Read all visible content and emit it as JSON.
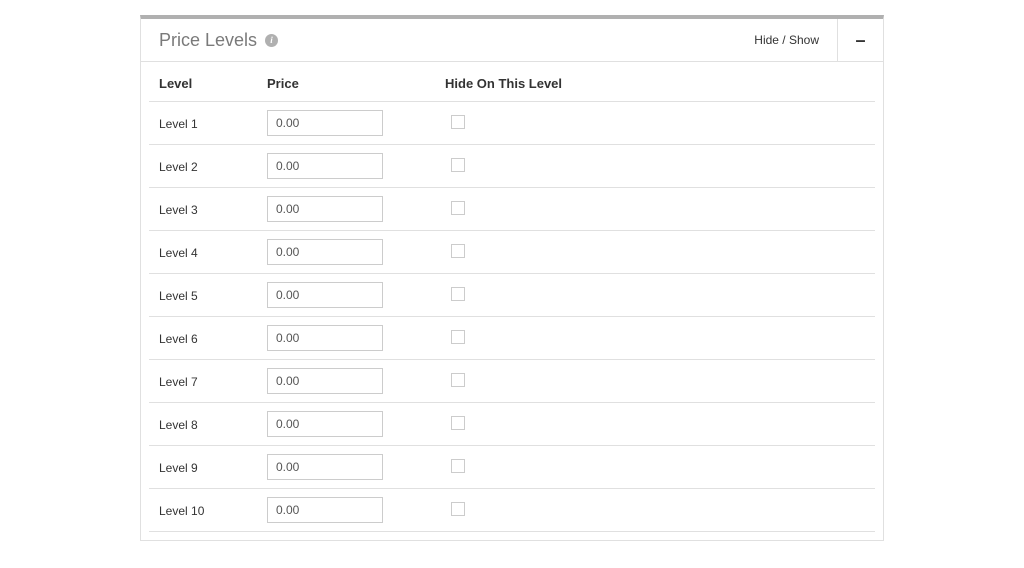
{
  "panel": {
    "title": "Price Levels",
    "info_icon": "i",
    "hide_show_label": "Hide / Show",
    "collapse_glyph": "–"
  },
  "table": {
    "columns": {
      "level": "Level",
      "price": "Price",
      "hide": "Hide On This Level"
    },
    "rows": [
      {
        "level": "Level 1",
        "price": "0.00",
        "hide": false
      },
      {
        "level": "Level 2",
        "price": "0.00",
        "hide": false
      },
      {
        "level": "Level 3",
        "price": "0.00",
        "hide": false
      },
      {
        "level": "Level 4",
        "price": "0.00",
        "hide": false
      },
      {
        "level": "Level 5",
        "price": "0.00",
        "hide": false
      },
      {
        "level": "Level 6",
        "price": "0.00",
        "hide": false
      },
      {
        "level": "Level 7",
        "price": "0.00",
        "hide": false
      },
      {
        "level": "Level 8",
        "price": "0.00",
        "hide": false
      },
      {
        "level": "Level 9",
        "price": "0.00",
        "hide": false
      },
      {
        "level": "Level 10",
        "price": "0.00",
        "hide": false
      }
    ]
  },
  "styling": {
    "panel_top_border_color": "#b0b0b0",
    "border_color": "#e0e0e0",
    "title_color": "#7a7a7a",
    "text_color": "#333333",
    "input_border_color": "#cccccc",
    "background_color": "#ffffff",
    "title_fontsize": 18,
    "body_fontsize": 13,
    "label_fontsize": 12,
    "input_width": 116,
    "input_height": 26,
    "checkbox_size": 14
  }
}
